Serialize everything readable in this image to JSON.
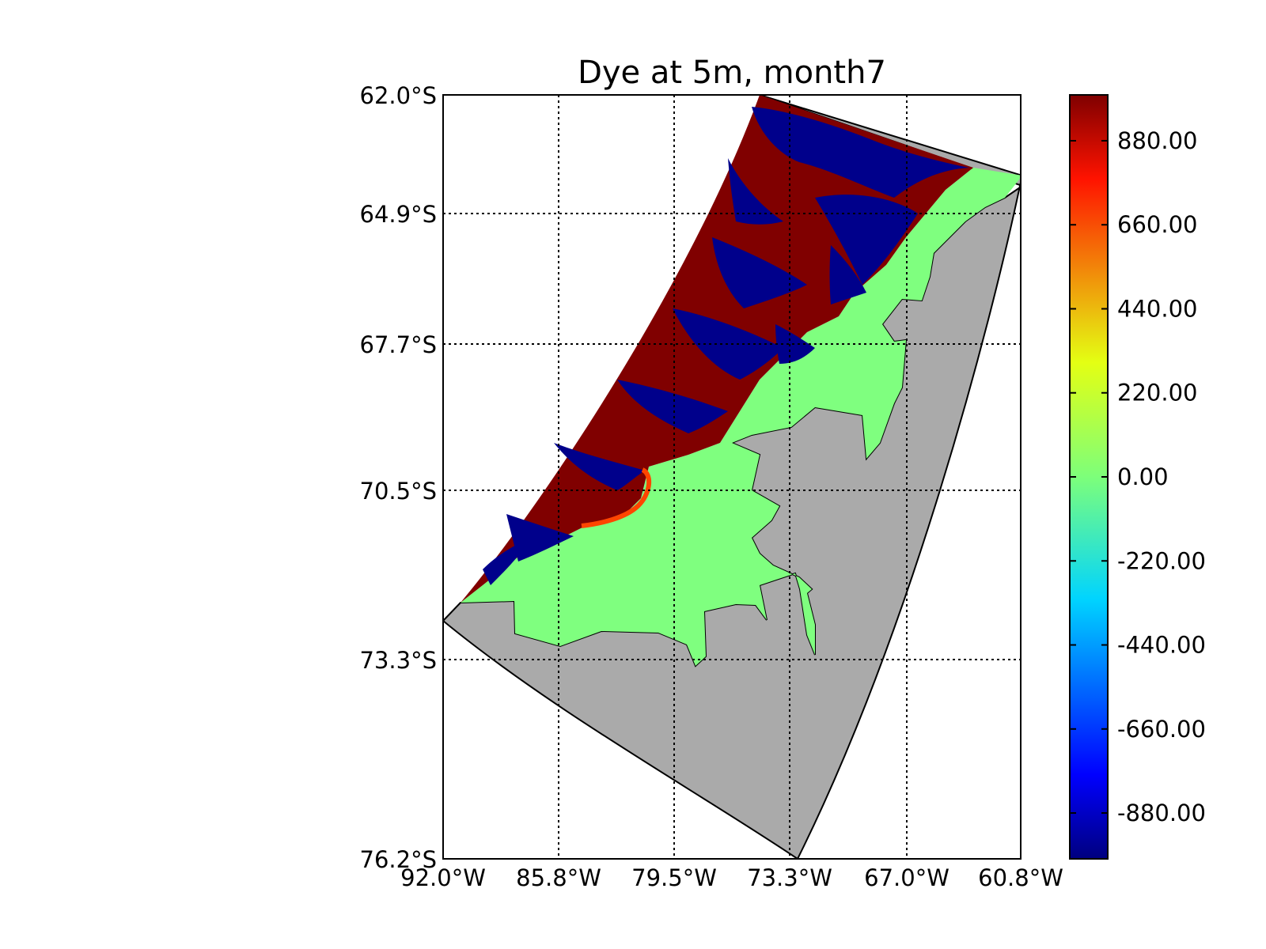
{
  "title": "Dye at 5m, month7",
  "colors": {
    "land": "#aaaaaa",
    "dye_high": "#800000",
    "dye_low": "#00008b",
    "dye_zero": "#7fff7f",
    "coastline": "#000000"
  },
  "map": {
    "lat_ticks": [
      "62.0°S",
      "64.9°S",
      "67.7°S",
      "70.5°S",
      "73.3°S",
      "76.2°S"
    ],
    "lon_ticks": [
      "92.0°W",
      "85.8°W",
      "79.5°W",
      "73.3°W",
      "67.0°W",
      "60.8°W"
    ],
    "grid": true
  },
  "colorbar": {
    "colormap": "jet",
    "range": [
      -1000,
      1000
    ],
    "tick_values": [
      880,
      660,
      440,
      220,
      0,
      -220,
      -440,
      -660,
      -880
    ],
    "tick_labels": [
      "880.00",
      "660.00",
      "440.00",
      "220.00",
      "0.00",
      "-220.00",
      "-440.00",
      "-660.00",
      "-880.00"
    ]
  }
}
